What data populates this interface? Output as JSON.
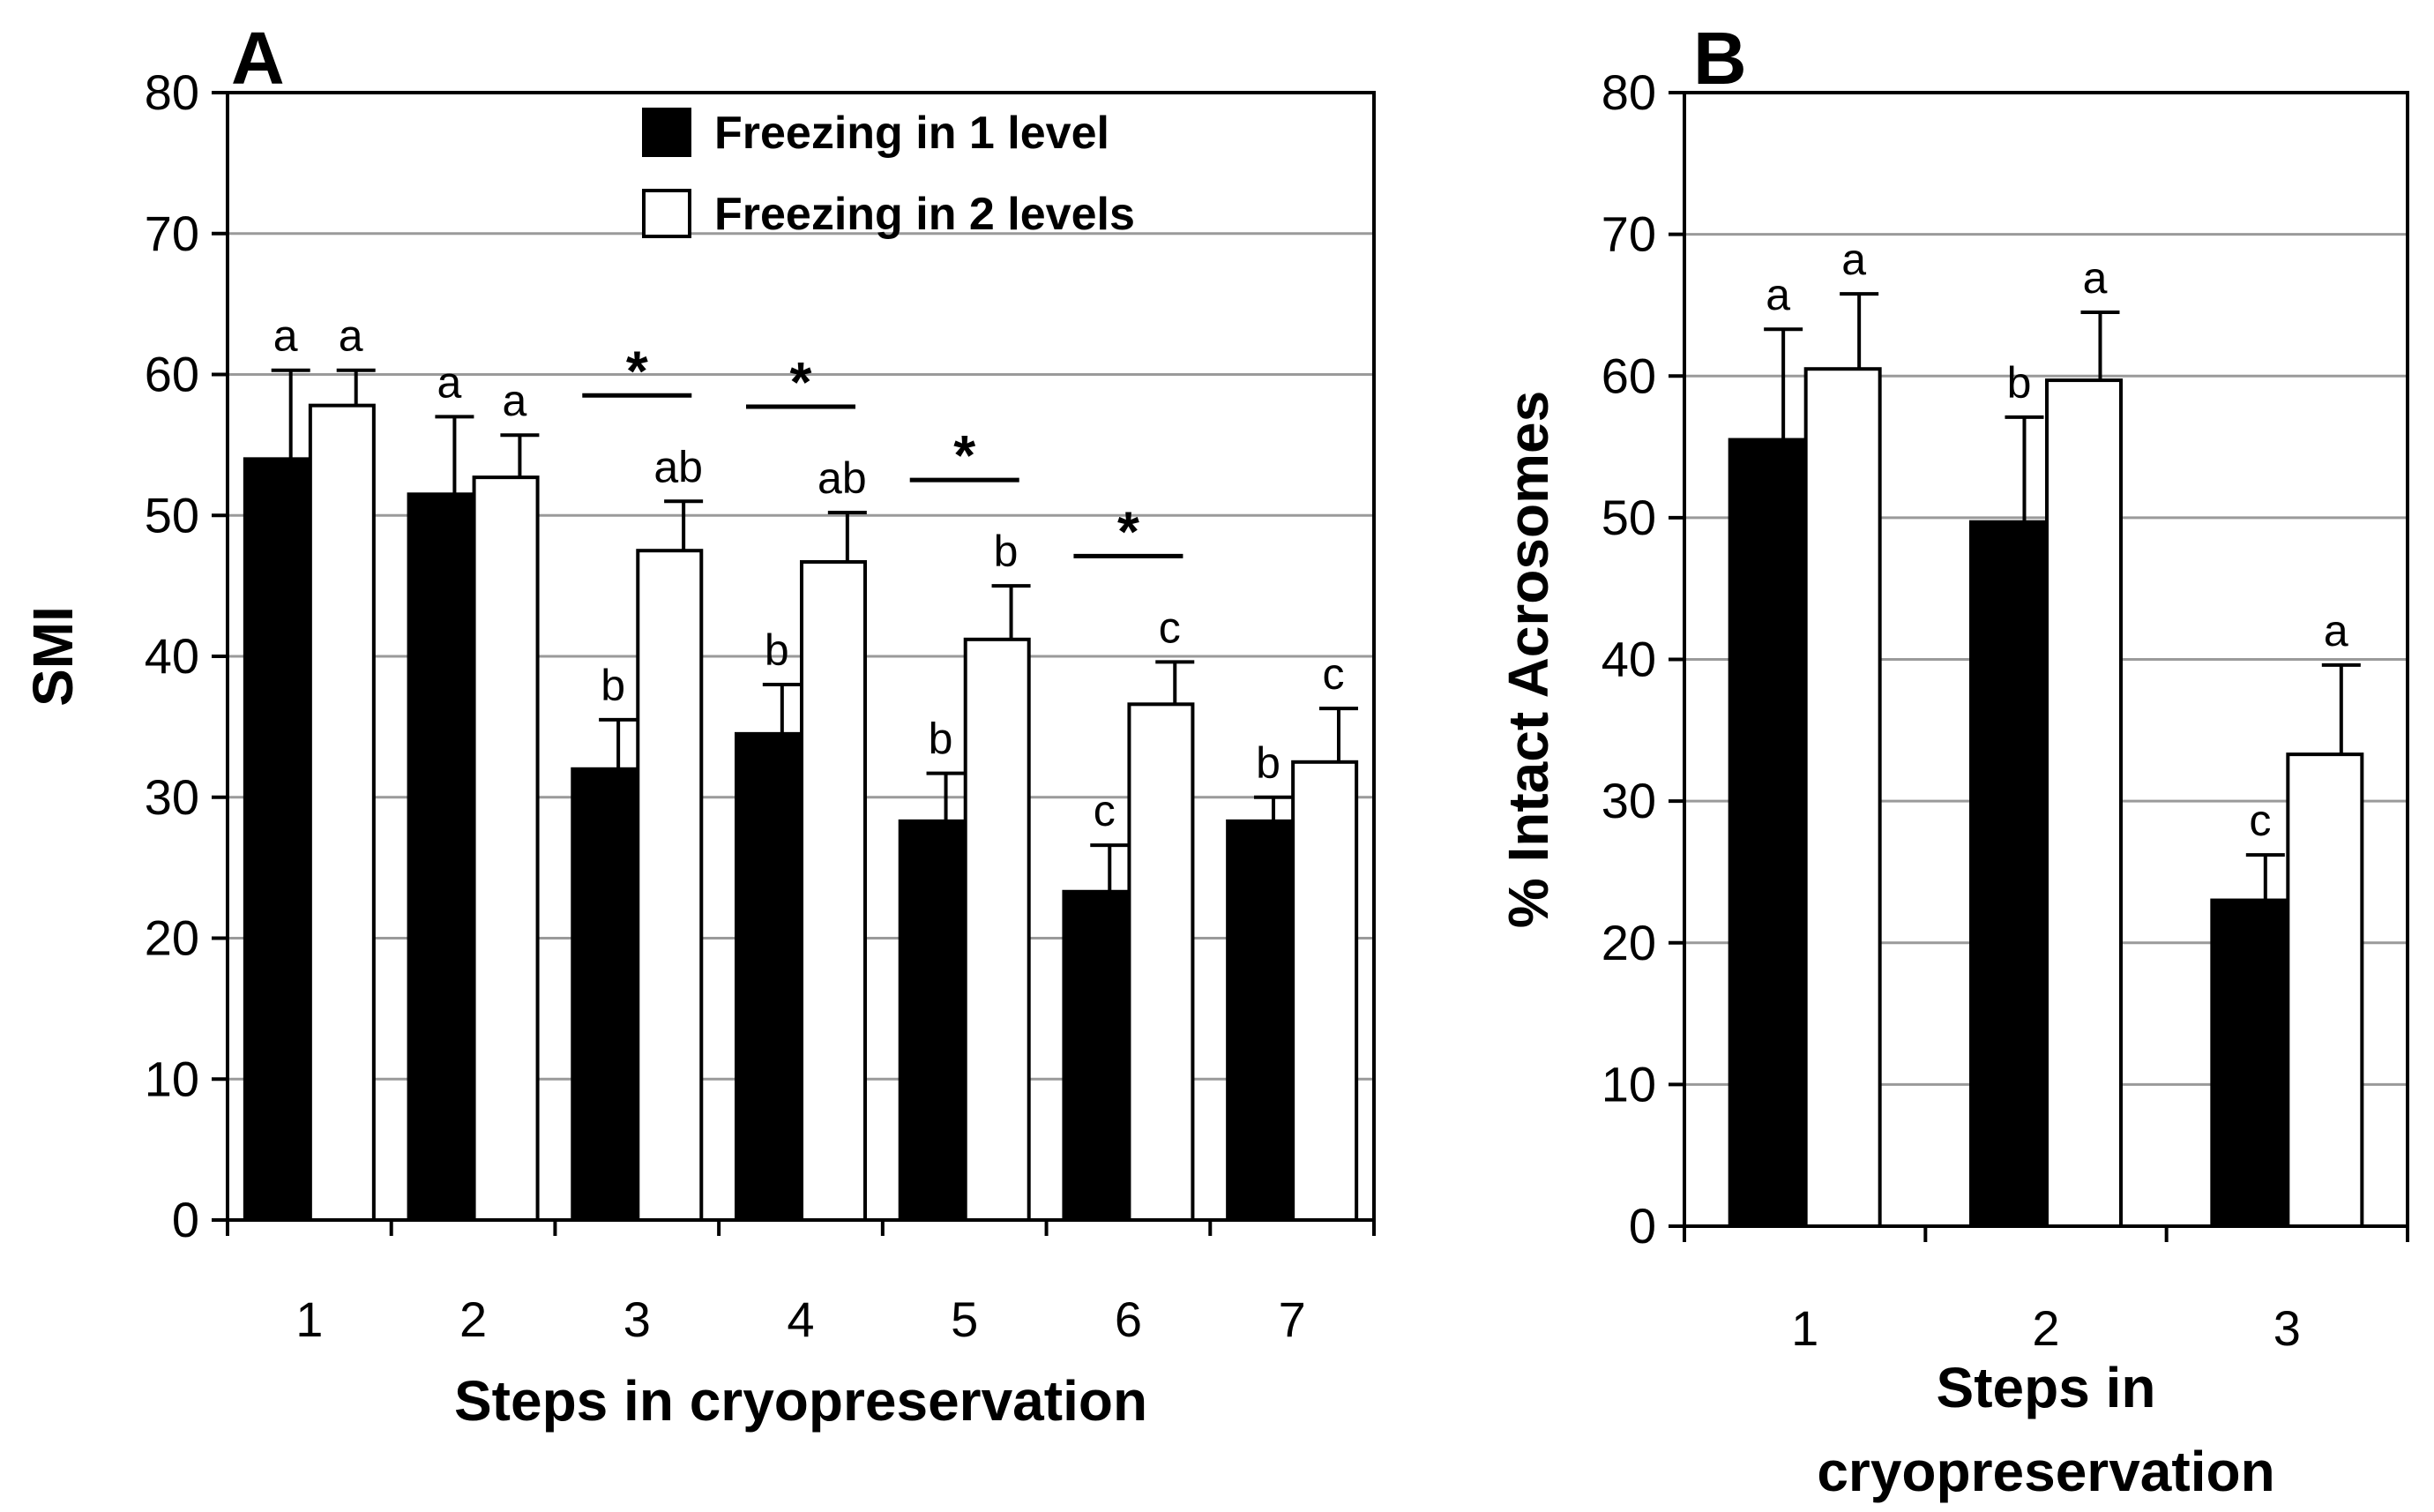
{
  "chart_data": [
    {
      "type": "bar",
      "panel_label": "A",
      "categories": [
        "1",
        "2",
        "3",
        "4",
        "5",
        "6",
        "7"
      ],
      "series": [
        {
          "name": "Freezing in 1 level",
          "color": "#000000",
          "values": [
            54,
            51.5,
            32,
            34.5,
            28.3,
            23.3,
            28.3
          ],
          "errors": [
            6.3,
            5.5,
            3.5,
            3.5,
            3.4,
            3.3,
            1.7
          ],
          "sig_letters": [
            "a",
            "a",
            "b",
            "b",
            "b",
            "c",
            "b"
          ]
        },
        {
          "name": "Freezing in 2 levels",
          "color": "#ffffff",
          "values": [
            57.8,
            52.7,
            47.5,
            46.7,
            41.2,
            36.6,
            32.5
          ],
          "errors": [
            2.5,
            3,
            3.5,
            3.5,
            3.8,
            3,
            3.8
          ],
          "sig_letters": [
            "a",
            "a",
            "ab",
            "ab",
            "b",
            "c",
            "c"
          ]
        }
      ],
      "star_categories": [
        "3",
        "4",
        "5",
        "6"
      ],
      "star_symbol": "*",
      "xlabel": "Steps in cryopreservation",
      "ylabel": "SMI",
      "ylim": [
        0,
        80
      ],
      "yticks": [
        0,
        10,
        20,
        30,
        40,
        50,
        60,
        70,
        80
      ],
      "grid": true,
      "legend_position": "top-center"
    },
    {
      "type": "bar",
      "panel_label": "B",
      "categories": [
        "1",
        "2",
        "3"
      ],
      "series": [
        {
          "name": "Freezing in 1 level",
          "color": "#000000",
          "values": [
            55.5,
            49.7,
            23
          ],
          "errors": [
            7.8,
            7.4,
            3.2
          ],
          "sig_letters": [
            "a",
            "b",
            "c"
          ]
        },
        {
          "name": "Freezing in 2 levels",
          "color": "#ffffff",
          "values": [
            60.5,
            59.7,
            33.3
          ],
          "errors": [
            5.3,
            4.8,
            6.3
          ],
          "sig_letters": [
            "a",
            "a",
            "a"
          ]
        }
      ],
      "xlabel_lines": [
        "Steps in",
        "cryopreservation"
      ],
      "ylabel": "% Intact Acrosomes",
      "ylim": [
        0,
        80
      ],
      "yticks": [
        0,
        10,
        20,
        30,
        40,
        50,
        60,
        70,
        80
      ],
      "grid": true
    }
  ]
}
